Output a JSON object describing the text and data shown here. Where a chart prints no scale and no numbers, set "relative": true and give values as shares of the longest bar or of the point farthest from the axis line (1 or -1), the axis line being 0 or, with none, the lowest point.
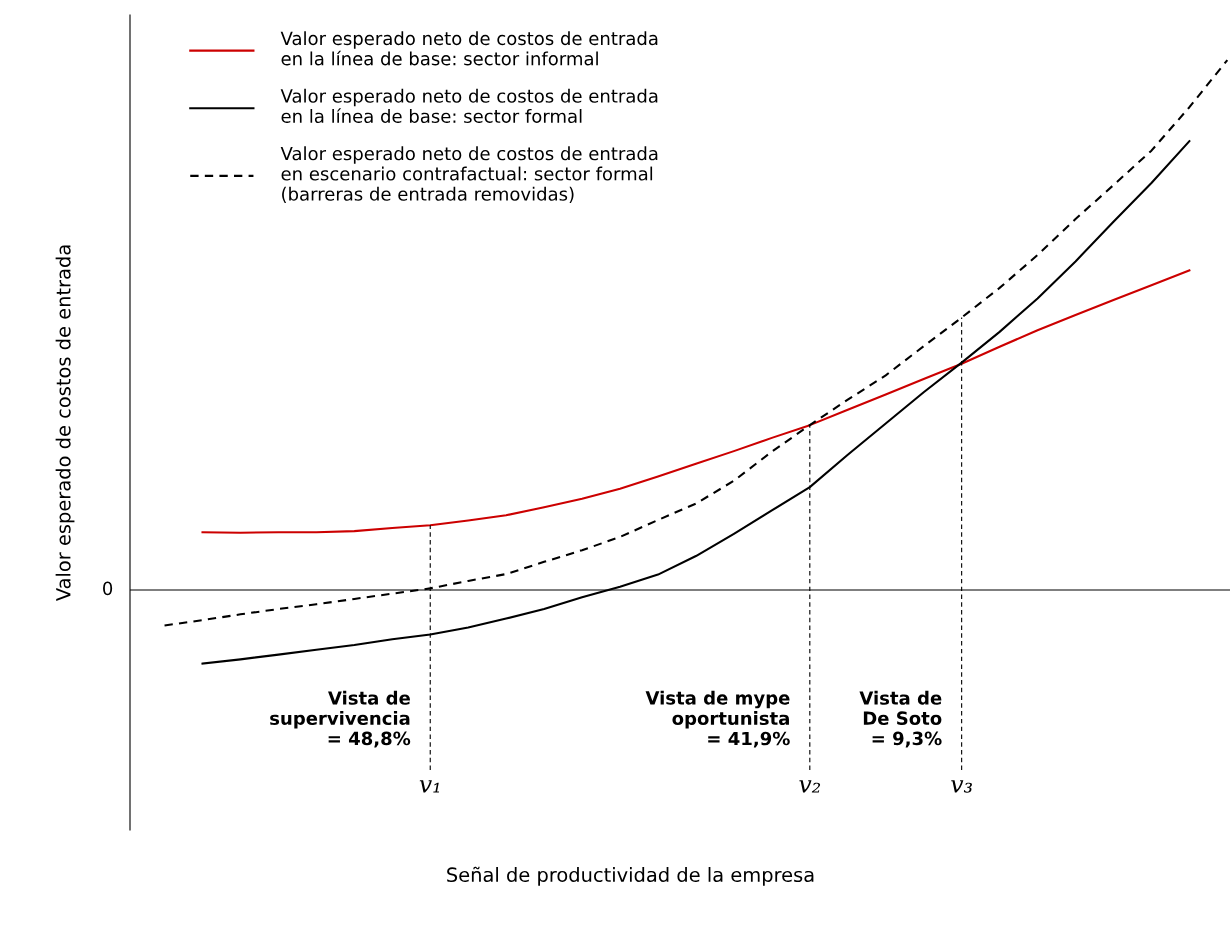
{
  "chart_data": {
    "type": "line",
    "relative": true,
    "xlabel": "Señal de productividad de la empresa",
    "ylabel": "Valor esperado de costos de entrada",
    "categories": [
      null,
      null,
      null,
      null,
      null,
      null,
      null,
      "v₁",
      null,
      null,
      null,
      null,
      null,
      null,
      null,
      null,
      null,
      "v₂",
      null,
      null,
      null,
      "v₃",
      null,
      null,
      null,
      null,
      null,
      null,
      null
    ],
    "legend": "top left",
    "grid": false,
    "marker": "none",
    "series": [
      {
        "name": "Valor esperado neto de costos de entrada\nen la línea de base: sector informal",
        "color": "#cc0000",
        "line_style": "solid",
        "values": [
          null,
          0.109,
          0.108,
          0.109,
          0.109,
          0.111,
          0.117,
          0.122,
          0.131,
          0.141,
          0.156,
          0.172,
          0.191,
          0.214,
          0.238,
          0.262,
          0.287,
          0.311,
          0.34,
          0.369,
          0.398,
          0.427,
          0.459,
          0.49,
          0.519,
          0.547,
          0.575,
          0.603,
          null
        ]
      },
      {
        "name": "Valor esperado neto de costos de entrada\nen la línea de base: sector formal",
        "color": "#000000",
        "line_style": "solid",
        "values": [
          null,
          -0.139,
          -0.131,
          -0.122,
          -0.113,
          -0.104,
          -0.093,
          -0.084,
          -0.071,
          -0.054,
          -0.036,
          -0.014,
          0.006,
          0.029,
          0.064,
          0.106,
          0.15,
          0.194,
          0.255,
          0.314,
          0.373,
          0.429,
          0.487,
          0.55,
          0.62,
          0.695,
          0.768,
          0.847,
          null
        ]
      },
      {
        "name": "Valor esperado neto de costos de entrada\nen escenario contrafactual: sector formal\n(barreras de entrada removidas)",
        "color": "#000000",
        "line_style": "dashed",
        "values": [
          -0.067,
          -0.057,
          -0.046,
          -0.036,
          -0.027,
          -0.017,
          -0.007,
          0.003,
          0.017,
          0.03,
          0.053,
          0.075,
          0.1,
          0.132,
          0.163,
          0.206,
          0.261,
          0.311,
          0.359,
          0.405,
          0.46,
          0.514,
          0.57,
          0.632,
          0.7,
          0.764,
          0.829,
          0.911,
          1.0
        ]
      }
    ],
    "ref_lines": [
      {
        "axis": "y",
        "value": 0,
        "label": "0",
        "color": "#000000",
        "line_style": "solid"
      },
      {
        "axis": "x",
        "value": "v₁",
        "color": "#000000",
        "line_style": "dashed"
      },
      {
        "axis": "x",
        "value": "v₂",
        "color": "#000000",
        "line_style": "dashed"
      },
      {
        "axis": "x",
        "value": "v₃",
        "color": "#000000",
        "line_style": "dashed"
      }
    ],
    "annotations": [
      {
        "text": "Vista de\nsupervivencia\n= 48,8%",
        "x": "v₁",
        "y": -0.245
      },
      {
        "text": "Vista de mype\noportunista\n= 41,9%",
        "x": "v₂",
        "y": -0.245
      },
      {
        "text": "Vista de\nDe Soto\n= 9,3%",
        "x": "v₃",
        "y": -0.245
      }
    ]
  }
}
